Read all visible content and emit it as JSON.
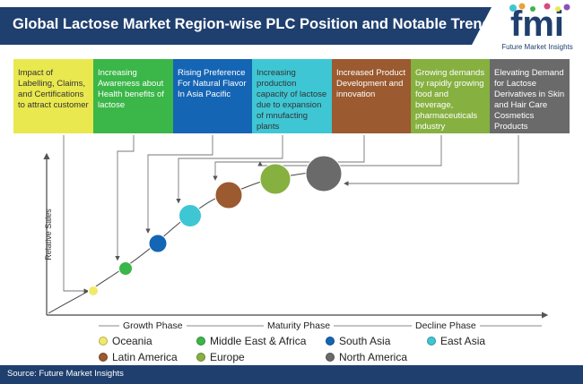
{
  "title": "Global Lactose Market Region-wise PLC Position and Notable Trends",
  "logo": {
    "text": "Future Market Insights",
    "letters": "fmi"
  },
  "trends": [
    {
      "text": "Impact of Labelling, Claims, and Certifications to attract customer",
      "color": "#e9e84f",
      "text_color": "#333333"
    },
    {
      "text": "Increasing Awareness about Health benefits of lactose",
      "color": "#3bb648",
      "text_color": "#ffffff"
    },
    {
      "text": "Rising Preference For Natural Flavor In Asia Pacific",
      "color": "#1565b5",
      "text_color": "#ffffff"
    },
    {
      "text": "Increasing production capacity of lactose due to expansion of mnufacting plants",
      "color": "#3ec6d4",
      "text_color": "#333333"
    },
    {
      "text": "Increased Product Development and innovation",
      "color": "#9b5a2f",
      "text_color": "#ffffff"
    },
    {
      "text": "Growing demands by rapidly growing food and beverage, pharmaceuticals industry",
      "color": "#86b040",
      "text_color": "#ffffff"
    },
    {
      "text": "Elevating Demand for Lactose Derivatives in Skin and Hair Care Cosmetics Products",
      "color": "#6a6a6a",
      "text_color": "#ffffff"
    }
  ],
  "axis": {
    "ylabel": "Relative Sales"
  },
  "phases": [
    "Growth Phase",
    "Maturity Phase",
    "Decline Phase"
  ],
  "regions": [
    {
      "name": "Oceania",
      "color": "#f0ea6a"
    },
    {
      "name": "Middle East & Africa",
      "color": "#3bb648"
    },
    {
      "name": "South Asia",
      "color": "#1565b5"
    },
    {
      "name": "East Asia",
      "color": "#3ec6d4"
    },
    {
      "name": "Latin America",
      "color": "#9b5a2f"
    },
    {
      "name": "Europe",
      "color": "#86b040"
    },
    {
      "name": "North America",
      "color": "#6a6a6a"
    }
  ],
  "footer": {
    "source": "Source: Future Market Insights"
  }
}
